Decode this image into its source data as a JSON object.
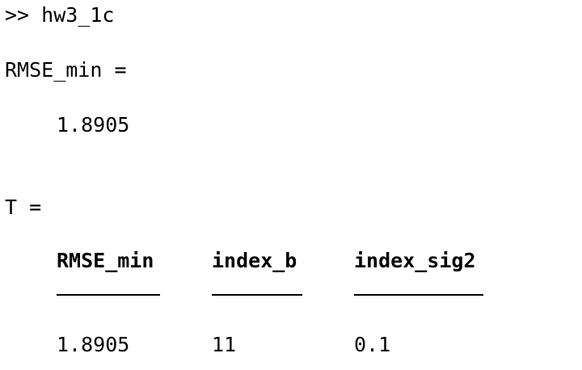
{
  "console": {
    "command": ">> hw3_1c",
    "rmse_label": "RMSE_min =",
    "rmse_value": "1.8905",
    "table_label": "T ="
  },
  "table": {
    "columns": [
      {
        "header": "RMSE_min",
        "value": "1.8905"
      },
      {
        "header": "index_b",
        "value": "11"
      },
      {
        "header": "index_sig2",
        "value": "0.1"
      }
    ]
  }
}
